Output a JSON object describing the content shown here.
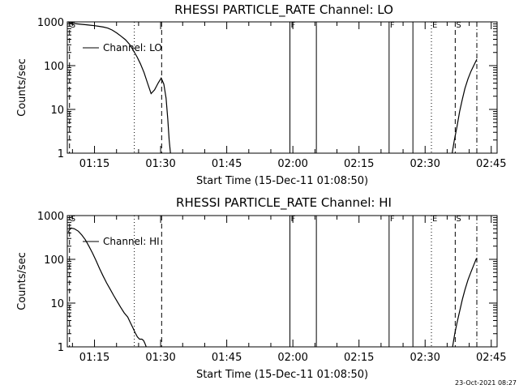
{
  "colors": {
    "background": "#ffffff",
    "foreground": "#000000"
  },
  "footer": {
    "timestamp": "23-Oct-2021 08:27"
  },
  "chart_data": [
    {
      "type": "line",
      "title": "RHESSI PARTICLE_RATE Channel: LO",
      "xlabel": "Start Time (15-Dec-11 01:08:50)",
      "ylabel": "Counts/sec",
      "x_unit": "minutes after 01:08:50",
      "xlim": [
        0,
        97.5
      ],
      "ylim": [
        1,
        1000
      ],
      "yscale": "log",
      "xticks": [
        {
          "x": 6.17,
          "label": "01:15"
        },
        {
          "x": 21.17,
          "label": "01:30"
        },
        {
          "x": 36.17,
          "label": "01:45"
        },
        {
          "x": 51.17,
          "label": "02:00"
        },
        {
          "x": 66.17,
          "label": "02:15"
        },
        {
          "x": 81.17,
          "label": "02:30"
        },
        {
          "x": 96.17,
          "label": "02:45"
        }
      ],
      "yticks": [
        {
          "y": 1,
          "label": "1"
        },
        {
          "y": 10,
          "label": "10"
        },
        {
          "y": 100,
          "label": "100"
        },
        {
          "y": 1000,
          "label": "1000"
        }
      ],
      "legend": {
        "position": "top-left",
        "entries": [
          "Channel: LO"
        ]
      },
      "series": [
        {
          "name": "Channel: LO",
          "segments": [
            {
              "x": [
                0.2,
                0.8,
                1.5,
                2.3,
                3.2,
                4.2,
                5.2,
                6.2,
                7.2,
                8.2,
                9.2,
                10.2,
                11.2,
                12.2,
                13.2,
                14.2,
                15.0,
                15.8,
                16.6,
                17.4,
                18.2,
                19.0,
                19.8,
                20.6,
                21.3,
                21.9,
                22.4,
                22.8,
                23.1,
                23.4
              ],
              "y": [
                980,
                950,
                920,
                900,
                880,
                860,
                840,
                820,
                790,
                760,
                720,
                650,
                560,
                470,
                390,
                300,
                220,
                160,
                110,
                70,
                40,
                23,
                28,
                40,
                52,
                38,
                18,
                6,
                2,
                1
              ]
            },
            {
              "x": [
                87.3,
                87.8,
                88.4,
                89.0,
                89.6,
                90.2,
                90.9,
                91.6,
                92.3,
                92.9
              ],
              "y": [
                1,
                2,
                4,
                9,
                17,
                30,
                50,
                75,
                105,
                140
              ]
            }
          ]
        }
      ],
      "markers": [
        {
          "x": 0.5,
          "label": "S",
          "style": "dashed"
        },
        {
          "x": 15.2,
          "label": "",
          "style": "dotted"
        },
        {
          "x": 21.4,
          "label": "",
          "style": "dashed"
        },
        {
          "x": 50.5,
          "label": "F",
          "style": "solid"
        },
        {
          "x": 56.5,
          "label": "",
          "style": "solid"
        },
        {
          "x": 73.0,
          "label": "F",
          "style": "solid"
        },
        {
          "x": 78.4,
          "label": "",
          "style": "solid"
        },
        {
          "x": 82.6,
          "label": "E",
          "style": "dotted"
        },
        {
          "x": 88.0,
          "label": "S",
          "style": "dashed"
        },
        {
          "x": 92.9,
          "label": "",
          "style": "dashdot"
        }
      ]
    },
    {
      "type": "line",
      "title": "RHESSI PARTICLE_RATE Channel: HI",
      "xlabel": "Start Time (15-Dec-11 01:08:50)",
      "ylabel": "Counts/sec",
      "x_unit": "minutes after 01:08:50",
      "xlim": [
        0,
        97.5
      ],
      "ylim": [
        1,
        1000
      ],
      "yscale": "log",
      "xticks": [
        {
          "x": 6.17,
          "label": "01:15"
        },
        {
          "x": 21.17,
          "label": "01:30"
        },
        {
          "x": 36.17,
          "label": "01:45"
        },
        {
          "x": 51.17,
          "label": "02:00"
        },
        {
          "x": 66.17,
          "label": "02:15"
        },
        {
          "x": 81.17,
          "label": "02:30"
        },
        {
          "x": 96.17,
          "label": "02:45"
        }
      ],
      "yticks": [
        {
          "y": 1,
          "label": "1"
        },
        {
          "y": 10,
          "label": "10"
        },
        {
          "y": 100,
          "label": "100"
        },
        {
          "y": 1000,
          "label": "1000"
        }
      ],
      "legend": {
        "position": "top-left",
        "entries": [
          "Channel: HI"
        ]
      },
      "series": [
        {
          "name": "Channel: HI",
          "segments": [
            {
              "x": [
                0.2,
                0.8,
                1.6,
                2.5,
                3.3,
                4.1,
                4.9,
                5.7,
                6.5,
                7.3,
                8.1,
                8.9,
                9.7,
                10.5,
                11.3,
                12.1,
                12.9,
                13.7,
                14.3,
                14.9,
                15.4,
                15.9,
                16.4,
                16.9,
                17.3,
                17.6,
                17.9
              ],
              "y": [
                420,
                520,
                500,
                440,
                360,
                280,
                200,
                140,
                95,
                62,
                42,
                29,
                21,
                15,
                11,
                8,
                6,
                4.8,
                3.6,
                2.7,
                2.1,
                1.7,
                1.5,
                1.5,
                1.4,
                1.2,
                1
              ]
            },
            {
              "x": [
                87.4,
                87.9,
                88.4,
                89.0,
                89.6,
                90.2,
                90.9,
                91.6,
                92.3,
                92.8
              ],
              "y": [
                1,
                2,
                3.5,
                6.5,
                12,
                20,
                34,
                52,
                78,
                105
              ]
            }
          ]
        }
      ],
      "markers": [
        {
          "x": 0.5,
          "label": "S",
          "style": "dashed"
        },
        {
          "x": 15.2,
          "label": "",
          "style": "dotted"
        },
        {
          "x": 21.4,
          "label": "",
          "style": "dashed"
        },
        {
          "x": 50.5,
          "label": "F",
          "style": "solid"
        },
        {
          "x": 56.5,
          "label": "",
          "style": "solid"
        },
        {
          "x": 73.0,
          "label": "F",
          "style": "solid"
        },
        {
          "x": 78.4,
          "label": "",
          "style": "solid"
        },
        {
          "x": 82.6,
          "label": "E",
          "style": "dotted"
        },
        {
          "x": 88.0,
          "label": "S",
          "style": "dashed"
        },
        {
          "x": 92.9,
          "label": "",
          "style": "dashdot"
        }
      ]
    }
  ]
}
